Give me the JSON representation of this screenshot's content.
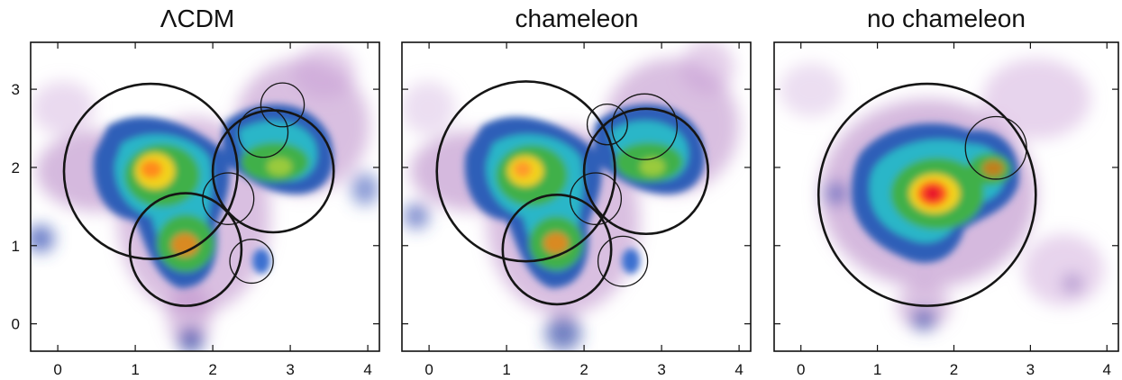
{
  "chart_data": [
    {
      "type": "heatmap",
      "title": "ΛCDM",
      "xlim": [
        -0.35,
        4.15
      ],
      "ylim": [
        -0.35,
        3.6
      ],
      "xticks": [
        0,
        1,
        2,
        3,
        4
      ],
      "yticks": [
        0,
        1,
        2,
        3
      ],
      "show_y_tick_labels": true,
      "grid": false,
      "density_peaks": [
        {
          "x": 1.2,
          "y": 1.95,
          "level": 1.0
        },
        {
          "x": 1.68,
          "y": 1.0,
          "level": 0.85
        },
        {
          "x": 2.85,
          "y": 2.05,
          "level": 0.62
        },
        {
          "x": 2.55,
          "y": 0.85,
          "level": 0.35
        }
      ],
      "circles": [
        {
          "x": 1.2,
          "y": 1.95,
          "r": 1.12,
          "weight": "thick"
        },
        {
          "x": 1.65,
          "y": 0.95,
          "r": 0.72,
          "weight": "thick"
        },
        {
          "x": 2.78,
          "y": 1.95,
          "r": 0.78,
          "weight": "thick"
        },
        {
          "x": 2.2,
          "y": 1.6,
          "r": 0.33,
          "weight": "thin"
        },
        {
          "x": 2.65,
          "y": 2.45,
          "r": 0.32,
          "weight": "thin"
        },
        {
          "x": 2.9,
          "y": 2.8,
          "r": 0.28,
          "weight": "thin"
        },
        {
          "x": 2.5,
          "y": 0.8,
          "r": 0.28,
          "weight": "thin"
        }
      ]
    },
    {
      "type": "heatmap",
      "title": "chameleon",
      "xlim": [
        -0.35,
        4.15
      ],
      "ylim": [
        -0.35,
        3.6
      ],
      "xticks": [
        0,
        1,
        2,
        3,
        4
      ],
      "yticks": [
        0,
        1,
        2,
        3
      ],
      "show_y_tick_labels": false,
      "grid": false,
      "density_peaks": [
        {
          "x": 1.2,
          "y": 1.95,
          "level": 0.95
        },
        {
          "x": 1.68,
          "y": 1.0,
          "level": 0.75
        },
        {
          "x": 2.85,
          "y": 2.05,
          "level": 0.6
        },
        {
          "x": 2.55,
          "y": 0.85,
          "level": 0.35
        }
      ],
      "circles": [
        {
          "x": 1.25,
          "y": 1.95,
          "r": 1.15,
          "weight": "thick"
        },
        {
          "x": 1.65,
          "y": 0.95,
          "r": 0.7,
          "weight": "thick"
        },
        {
          "x": 2.8,
          "y": 1.95,
          "r": 0.8,
          "weight": "thick"
        },
        {
          "x": 2.15,
          "y": 1.6,
          "r": 0.33,
          "weight": "thin"
        },
        {
          "x": 2.3,
          "y": 2.55,
          "r": 0.26,
          "weight": "thin"
        },
        {
          "x": 2.78,
          "y": 2.52,
          "r": 0.42,
          "weight": "thin"
        },
        {
          "x": 2.5,
          "y": 0.8,
          "r": 0.32,
          "weight": "thin"
        }
      ]
    },
    {
      "type": "heatmap",
      "title": "no chameleon",
      "xlim": [
        -0.35,
        4.15
      ],
      "ylim": [
        -0.35,
        3.6
      ],
      "xticks": [
        0,
        1,
        2,
        3,
        4
      ],
      "yticks": [
        0,
        1,
        2,
        3
      ],
      "show_y_tick_labels": false,
      "grid": false,
      "density_peaks": [
        {
          "x": 1.65,
          "y": 1.65,
          "level": 1.0
        },
        {
          "x": 2.5,
          "y": 2.15,
          "level": 0.55
        }
      ],
      "circles": [
        {
          "x": 1.65,
          "y": 1.65,
          "r": 1.42,
          "weight": "thick"
        },
        {
          "x": 2.55,
          "y": 2.25,
          "r": 0.4,
          "weight": "thin"
        }
      ]
    }
  ]
}
